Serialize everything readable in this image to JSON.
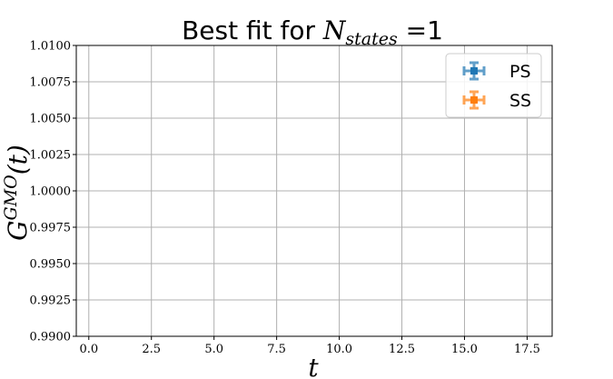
{
  "chart_data": {
    "type": "scatter",
    "title_prefix": "Best fit for ",
    "title_math_main": "N",
    "title_math_sub": "states",
    "title_suffix": " =1",
    "xlabel": "t",
    "ylabel_main": "G",
    "ylabel_sup": "GMO",
    "ylabel_arg": "(t)",
    "xlim": [
      -0.5,
      18.5
    ],
    "ylim": [
      0.99,
      1.01
    ],
    "xticks": [
      0,
      2.5,
      5,
      7.5,
      10,
      12.5,
      15,
      17.5
    ],
    "xtick_labels": [
      "0.0",
      "2.5",
      "5.0",
      "7.5",
      "10.0",
      "12.5",
      "15.0",
      "17.5"
    ],
    "yticks": [
      0.99,
      0.9925,
      0.995,
      0.9975,
      1.0,
      1.0025,
      1.005,
      1.0075,
      1.01
    ],
    "ytick_labels": [
      "0.9900",
      "0.9925",
      "0.9950",
      "0.9975",
      "1.0000",
      "1.0025",
      "1.0050",
      "1.0075",
      "1.0100"
    ],
    "grid": true,
    "legend_position": "top-right",
    "series": [
      {
        "name": "PS",
        "color": "#1f77b4",
        "x": [],
        "y": []
      },
      {
        "name": "SS",
        "color": "#ff7f0e",
        "x": [],
        "y": []
      }
    ]
  }
}
